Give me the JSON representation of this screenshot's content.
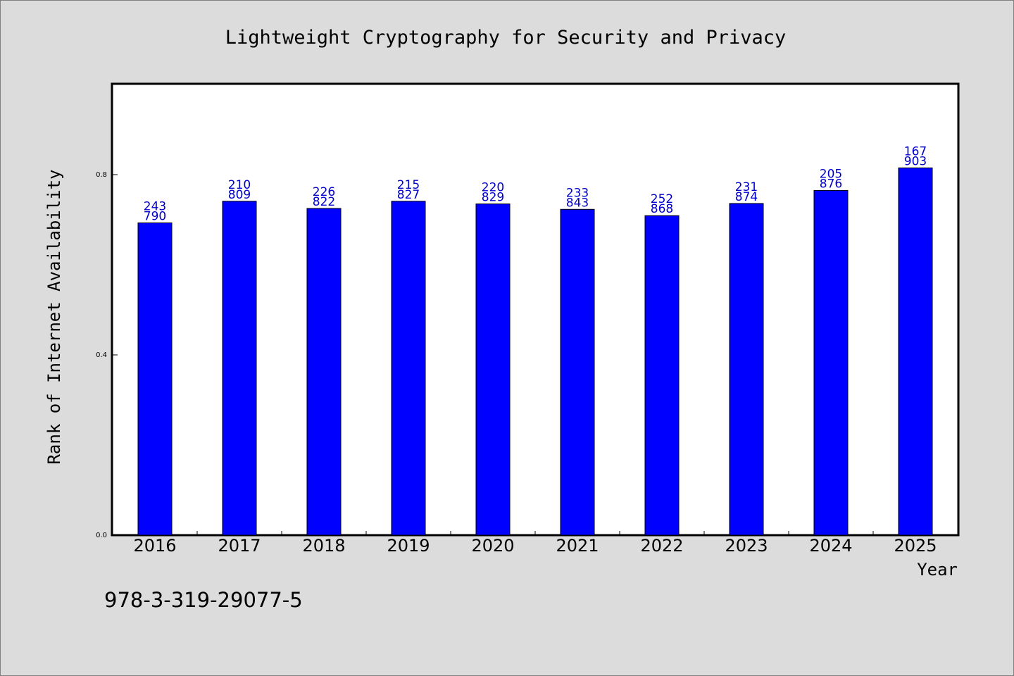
{
  "chart_data": {
    "type": "bar",
    "title": "Lightweight Cryptography for Security and Privacy",
    "xlabel": "Year",
    "ylabel": "Rank of Internet Availability",
    "footnote": "978-3-319-29077-5",
    "ylim": [
      0,
      1.0
    ],
    "yticks": [
      {
        "value": 0.0,
        "label": "0.0"
      },
      {
        "value": 0.4,
        "label": "0.4"
      },
      {
        "value": 0.8,
        "label": "0.8"
      }
    ],
    "grid": false,
    "categories": [
      "2016",
      "2017",
      "2018",
      "2019",
      "2020",
      "2021",
      "2022",
      "2023",
      "2024",
      "2025"
    ],
    "values": [
      0.693,
      0.741,
      0.725,
      0.741,
      0.735,
      0.723,
      0.709,
      0.736,
      0.765,
      0.815
    ],
    "bar_labels_top": [
      "243",
      "210",
      "226",
      "215",
      "220",
      "233",
      "252",
      "231",
      "205",
      "167"
    ],
    "bar_labels_bottom": [
      "790",
      "809",
      "822",
      "827",
      "829",
      "843",
      "868",
      "874",
      "876",
      "903"
    ],
    "colors": {
      "bar": "#0000ff",
      "label": "#0000cc",
      "background": "#dcdcdc",
      "plot": "#ffffff"
    }
  }
}
